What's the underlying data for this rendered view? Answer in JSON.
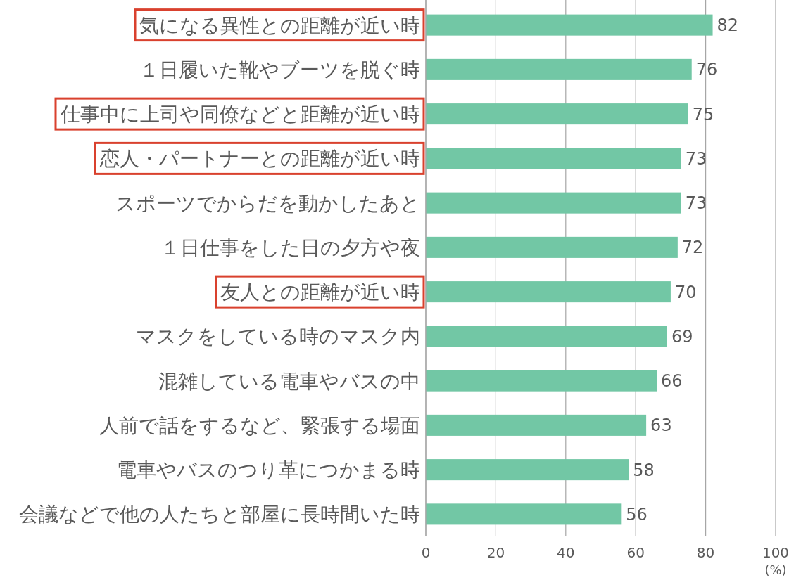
{
  "chart_data": {
    "type": "bar",
    "orientation": "horizontal",
    "categories": [
      "気になる異性との距離が近い時",
      "１日履いた靴やブーツを脱ぐ時",
      "仕事中に上司や同僚などと距離が近い時",
      "恋人・パートナーとの距離が近い時",
      "スポーツでからだを動かしたあと",
      "１日仕事をした日の夕方や夜",
      "友人との距離が近い時",
      "マスクをしている時のマスク内",
      "混雑している電車やバスの中",
      "人前で話をするなど、緊張する場面",
      "電車やバスのつり革につかまる時",
      "会議などで他の人たちと部屋に長時間いた時"
    ],
    "values": [
      82,
      76,
      75,
      73,
      73,
      72,
      70,
      69,
      66,
      63,
      58,
      56
    ],
    "color": "#72c7a5",
    "xlim": [
      0,
      100
    ],
    "xticks": [
      0,
      20,
      40,
      60,
      80,
      100
    ],
    "xlabel": "(%)",
    "grid": "x",
    "data_labels": true
  }
}
